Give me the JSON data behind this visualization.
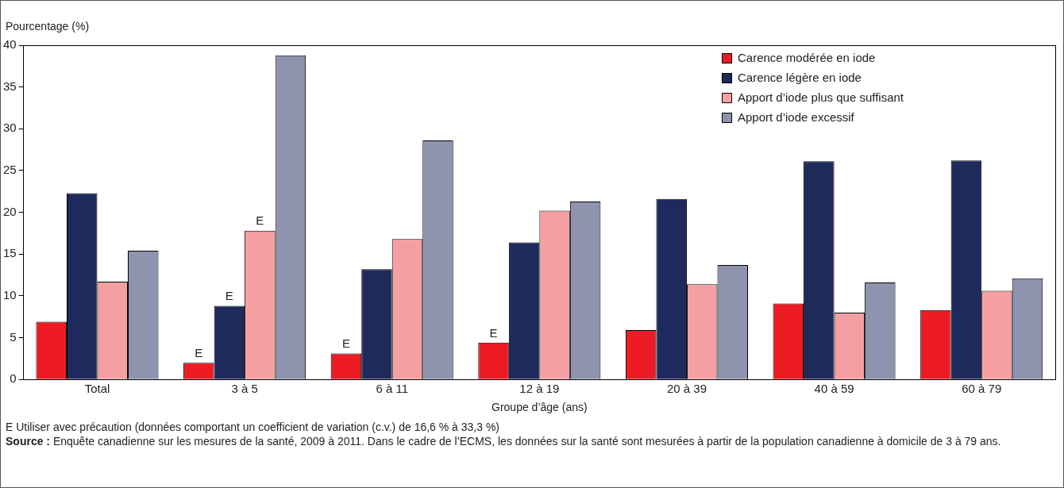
{
  "chart_data": {
    "type": "bar",
    "ylabel": "Pourcentage (%)",
    "xlabel": "Groupe d’âge (ans)",
    "categories": [
      "Total",
      "3 à 5",
      "6 à 11",
      "12 à 19",
      "20 à 39",
      "40 à 59",
      "60 à 79"
    ],
    "series": [
      {
        "name": "Carence modérée en iode",
        "color": "#ed1c24",
        "values": [
          6.9,
          2.0,
          3.1,
          4.4,
          5.9,
          9.1,
          8.3
        ],
        "value_labels": [
          null,
          "E",
          "E",
          "E",
          null,
          null,
          null
        ]
      },
      {
        "name": "Carence légère en iode",
        "color": "#1f2a5c",
        "values": [
          22.3,
          8.8,
          13.2,
          16.4,
          21.6,
          26.1,
          26.2
        ],
        "value_labels": [
          null,
          "E",
          null,
          null,
          null,
          null,
          null
        ]
      },
      {
        "name": "Apport d’iode plus que suffisant",
        "color": "#f4a0a3",
        "values": [
          11.7,
          17.8,
          16.8,
          20.2,
          11.4,
          8.0,
          10.6
        ],
        "value_labels": [
          null,
          "E",
          null,
          null,
          null,
          null,
          null
        ]
      },
      {
        "name": "Apport d’iode excessif",
        "color": "#8e94ae",
        "values": [
          15.4,
          38.8,
          28.6,
          21.3,
          13.7,
          11.6,
          12.1
        ]
      }
    ],
    "ylim": [
      0,
      40
    ],
    "yticks": [
      0,
      5,
      10,
      15,
      20,
      25,
      30,
      35,
      40
    ],
    "grid": false,
    "legend": "top right",
    "annotations": [
      "E  Utiliser avec précaution (données comportant un coefficient de variation (c.v.) de 16,6 % à 33,3 %)",
      "Source : Enquête canadienne sur les mesures de la santé, 2009 à 2011. Dans le cadre de l’ECMS, les données sur la santé sont mesurées à partir de la population canadienne à domicile de 3 à 79 ans."
    ]
  }
}
